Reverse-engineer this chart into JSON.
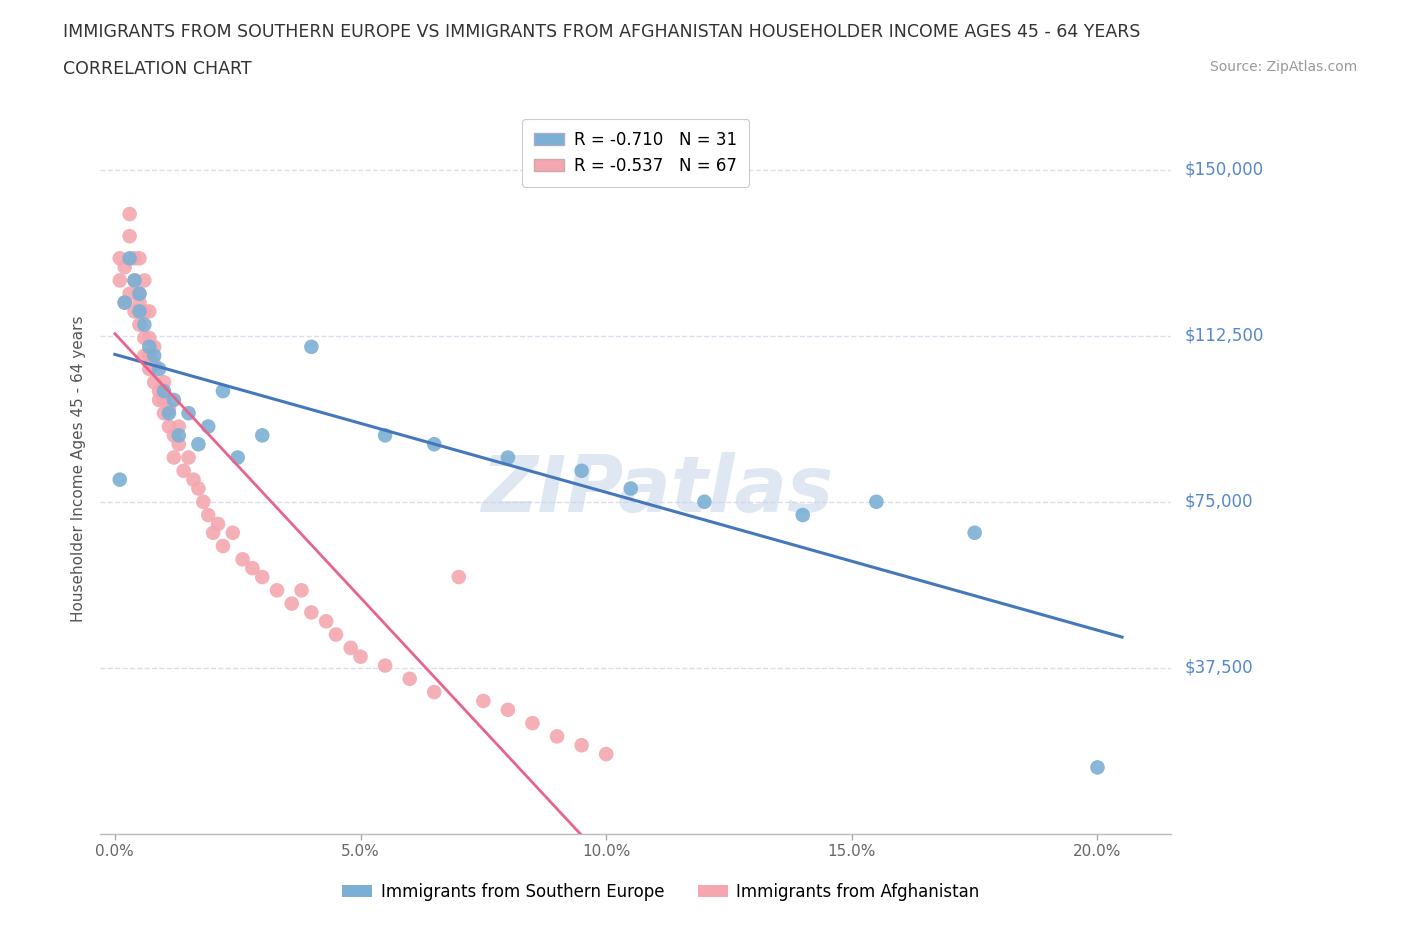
{
  "title_line1": "IMMIGRANTS FROM SOUTHERN EUROPE VS IMMIGRANTS FROM AFGHANISTAN HOUSEHOLDER INCOME AGES 45 - 64 YEARS",
  "title_line2": "CORRELATION CHART",
  "source_text": "Source: ZipAtlas.com",
  "xlabel_ticks": [
    "0.0%",
    "5.0%",
    "10.0%",
    "15.0%",
    "20.0%"
  ],
  "xlabel_vals": [
    0.0,
    0.05,
    0.1,
    0.15,
    0.2
  ],
  "ylabel": "Householder Income Ages 45 - 64 years",
  "ylabel_ticks": [
    "$37,500",
    "$75,000",
    "$112,500",
    "$150,000"
  ],
  "ylabel_vals": [
    37500,
    75000,
    112500,
    150000
  ],
  "ymin": 0,
  "ymax": 165000,
  "xmin": -0.003,
  "xmax": 0.215,
  "legend_blue_r": -0.71,
  "legend_blue_n": 31,
  "legend_pink_r": -0.537,
  "legend_pink_n": 67,
  "legend_blue_label": "Immigrants from Southern Europe",
  "legend_pink_label": "Immigrants from Afghanistan",
  "blue_color": "#7BAFD4",
  "pink_color": "#F4A7B0",
  "trendline_blue_color": "#4477BB",
  "trendline_pink_color": "#E8648A",
  "trendline_pink_dashed_color": "#E8C8D0",
  "watermark_color": "#C5D5E8",
  "grid_color": "#DDDDEE",
  "blue_scatter_x": [
    0.001,
    0.002,
    0.003,
    0.004,
    0.005,
    0.005,
    0.006,
    0.007,
    0.008,
    0.009,
    0.01,
    0.011,
    0.012,
    0.013,
    0.015,
    0.017,
    0.019,
    0.022,
    0.025,
    0.03,
    0.04,
    0.055,
    0.065,
    0.08,
    0.095,
    0.105,
    0.12,
    0.14,
    0.155,
    0.175,
    0.2
  ],
  "blue_scatter_y": [
    80000,
    120000,
    130000,
    125000,
    118000,
    122000,
    115000,
    110000,
    108000,
    105000,
    100000,
    95000,
    98000,
    90000,
    95000,
    88000,
    92000,
    100000,
    85000,
    90000,
    110000,
    90000,
    88000,
    85000,
    82000,
    78000,
    75000,
    72000,
    75000,
    68000,
    15000
  ],
  "pink_scatter_x": [
    0.001,
    0.001,
    0.002,
    0.002,
    0.003,
    0.003,
    0.003,
    0.004,
    0.004,
    0.004,
    0.005,
    0.005,
    0.005,
    0.005,
    0.006,
    0.006,
    0.006,
    0.006,
    0.007,
    0.007,
    0.007,
    0.007,
    0.008,
    0.008,
    0.008,
    0.009,
    0.009,
    0.01,
    0.01,
    0.01,
    0.011,
    0.011,
    0.012,
    0.012,
    0.013,
    0.013,
    0.014,
    0.015,
    0.016,
    0.017,
    0.018,
    0.019,
    0.02,
    0.021,
    0.022,
    0.024,
    0.026,
    0.028,
    0.03,
    0.033,
    0.036,
    0.038,
    0.04,
    0.043,
    0.045,
    0.048,
    0.05,
    0.055,
    0.06,
    0.065,
    0.07,
    0.075,
    0.08,
    0.085,
    0.09,
    0.095,
    0.1
  ],
  "pink_scatter_y": [
    130000,
    125000,
    128000,
    120000,
    140000,
    135000,
    122000,
    130000,
    125000,
    118000,
    130000,
    122000,
    115000,
    120000,
    125000,
    118000,
    112000,
    108000,
    118000,
    112000,
    105000,
    108000,
    110000,
    102000,
    106000,
    100000,
    98000,
    102000,
    95000,
    98000,
    92000,
    96000,
    90000,
    85000,
    92000,
    88000,
    82000,
    85000,
    80000,
    78000,
    75000,
    72000,
    68000,
    70000,
    65000,
    68000,
    62000,
    60000,
    58000,
    55000,
    52000,
    55000,
    50000,
    48000,
    45000,
    42000,
    40000,
    38000,
    35000,
    32000,
    58000,
    30000,
    28000,
    25000,
    22000,
    20000,
    18000
  ]
}
